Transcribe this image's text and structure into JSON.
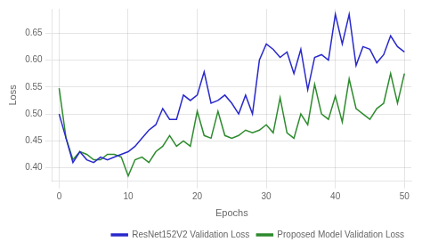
{
  "chart_data": {
    "type": "line",
    "x_label": "Epochs",
    "y_label": "Loss",
    "x": [
      0,
      1,
      2,
      3,
      4,
      5,
      6,
      7,
      8,
      9,
      10,
      11,
      12,
      13,
      14,
      15,
      16,
      17,
      18,
      19,
      20,
      21,
      22,
      23,
      24,
      25,
      26,
      27,
      28,
      29,
      30,
      31,
      32,
      33,
      34,
      35,
      36,
      37,
      38,
      39,
      40,
      41,
      42,
      43,
      44,
      45,
      46,
      47,
      48,
      49,
      50
    ],
    "series": [
      {
        "name": "ResNet152V2 Validation Loss",
        "color": "#2929cc",
        "values": [
          0.5,
          0.455,
          0.41,
          0.43,
          0.415,
          0.41,
          0.42,
          0.415,
          0.42,
          0.425,
          0.43,
          0.44,
          0.455,
          0.47,
          0.48,
          0.51,
          0.49,
          0.49,
          0.535,
          0.525,
          0.535,
          0.578,
          0.52,
          0.525,
          0.535,
          0.52,
          0.5,
          0.535,
          0.5,
          0.6,
          0.63,
          0.62,
          0.605,
          0.615,
          0.575,
          0.62,
          0.545,
          0.605,
          0.61,
          0.6,
          0.685,
          0.63,
          0.685,
          0.59,
          0.625,
          0.62,
          0.595,
          0.61,
          0.645,
          0.625,
          0.615
        ]
      },
      {
        "name": "Proposed Model Validation Loss",
        "color": "#2e8b2e",
        "values": [
          0.548,
          0.455,
          0.415,
          0.43,
          0.425,
          0.415,
          0.415,
          0.425,
          0.425,
          0.42,
          0.385,
          0.415,
          0.42,
          0.41,
          0.43,
          0.44,
          0.46,
          0.44,
          0.45,
          0.44,
          0.505,
          0.46,
          0.455,
          0.505,
          0.46,
          0.455,
          0.46,
          0.47,
          0.465,
          0.47,
          0.48,
          0.465,
          0.53,
          0.465,
          0.455,
          0.5,
          0.48,
          0.555,
          0.5,
          0.49,
          0.533,
          0.485,
          0.565,
          0.51,
          0.5,
          0.49,
          0.51,
          0.52,
          0.575,
          0.52,
          0.575
        ]
      }
    ],
    "xlim": [
      -1,
      51
    ],
    "ylim": [
      0.375,
      0.695
    ],
    "xticks": [
      0,
      10,
      20,
      30,
      40,
      50
    ],
    "yticks": [
      {
        "value": 0.4,
        "label": "0.40"
      },
      0.45,
      {
        "value": 0.5,
        "label": "0.50"
      },
      0.55,
      {
        "value": 0.6,
        "label": "0.60"
      },
      0.65
    ],
    "grid": true,
    "legend": "lower right"
  }
}
